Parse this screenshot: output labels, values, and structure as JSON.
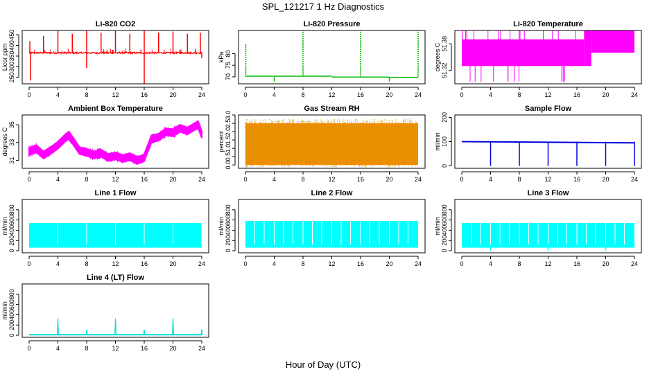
{
  "page": {
    "title": "SPL_121217  1 Hz Diagnostics",
    "xlabel": "Hour of Day (UTC)"
  },
  "chart_data": [
    {
      "type": "line",
      "title": "Li-820 CO2",
      "ylabel": "Licor ppm",
      "color": "#ff0000",
      "xticks": [
        0,
        4,
        8,
        12,
        16,
        20,
        24
      ],
      "yticks": [
        250,
        300,
        350,
        400,
        450
      ],
      "xlim": [
        0,
        24
      ],
      "ylim": [
        220,
        470
      ],
      "baseline": 365,
      "noise": 4,
      "spikes_up": [
        [
          0.1,
          420
        ],
        [
          2.0,
          445
        ],
        [
          4.0,
          470
        ],
        [
          6.0,
          455
        ],
        [
          8.0,
          470
        ],
        [
          10.0,
          460
        ],
        [
          12.0,
          470
        ],
        [
          14.0,
          455
        ],
        [
          16.0,
          470
        ],
        [
          18.0,
          460
        ],
        [
          20.0,
          465
        ],
        [
          22.0,
          455
        ],
        [
          23.8,
          460
        ]
      ],
      "spikes_down": [
        [
          0.2,
          235
        ],
        [
          8.0,
          295
        ],
        [
          16.0,
          220
        ],
        [
          24.0,
          340
        ]
      ]
    },
    {
      "type": "line",
      "title": "Li-820 Pressure",
      "ylabel": "kPa",
      "color": "#00bb00",
      "xticks": [
        0,
        4,
        8,
        12,
        16,
        20,
        24
      ],
      "yticks": [
        70,
        75,
        80
      ],
      "xlim": [
        0,
        24
      ],
      "ylim": [
        67,
        90
      ],
      "segments": [
        [
          0,
          12,
          70.3
        ],
        [
          12,
          20,
          69.9
        ],
        [
          20,
          24,
          69.7
        ]
      ],
      "spikes_up": [
        [
          0.05,
          84
        ],
        [
          8.0,
          90
        ],
        [
          16.0,
          90
        ],
        [
          24.0,
          90
        ]
      ],
      "spikes_down": [
        [
          4.0,
          68
        ],
        [
          20.0,
          68
        ]
      ]
    },
    {
      "type": "area",
      "title": "Li-820 Temperature",
      "ylabel": "degrees C",
      "color": "#ff00ff",
      "xticks": [
        0,
        4,
        8,
        12,
        16,
        20,
        24
      ],
      "yticks": [
        51.32,
        51.38
      ],
      "ytick_labels": [
        "51.32",
        "51.38"
      ],
      "xlim": [
        0,
        24
      ],
      "ylim": [
        51.29,
        51.41
      ],
      "bands": [
        [
          0,
          17,
          51.33,
          51.39
        ],
        [
          17,
          18,
          51.33,
          51.41
        ],
        [
          18,
          24,
          51.36,
          51.41
        ]
      ]
    },
    {
      "type": "line",
      "title": "Ambient Box Temperature",
      "ylabel": "degrees C",
      "color": "#ff00ff",
      "xticks": [
        0,
        4,
        8,
        12,
        16,
        20,
        24
      ],
      "yticks": [
        31,
        33,
        35
      ],
      "xlim": [
        0,
        24
      ],
      "ylim": [
        30.1,
        36.1
      ],
      "x": [
        0,
        1,
        2,
        3,
        4,
        5,
        5.5,
        6,
        7,
        8,
        9,
        10,
        11,
        12,
        13,
        14,
        15,
        15.5,
        16,
        17,
        18,
        19,
        20,
        21,
        22,
        23,
        23.5,
        24
      ],
      "y": [
        32.0,
        32.3,
        31.6,
        32.1,
        32.7,
        33.5,
        33.8,
        33.3,
        32.1,
        31.9,
        31.6,
        31.8,
        31.3,
        31.5,
        31.2,
        31.4,
        31.0,
        31.1,
        31.3,
        33.4,
        33.6,
        34.2,
        34.1,
        34.6,
        34.3,
        34.8,
        35.0,
        33.9
      ],
      "band_half_width": 0.4
    },
    {
      "type": "area",
      "title": "Gas Stream RH",
      "ylabel": "percent",
      "color": "#ff8800",
      "color2": "#cc9900",
      "xticks": [
        0,
        4,
        8,
        12,
        16,
        20,
        24
      ],
      "yticks": [
        0.0,
        0.5,
        1.0,
        1.5,
        2.0,
        2.5,
        3.0
      ],
      "ytick_labels": [
        "0.0",
        "0.5",
        "1.0",
        "1.5",
        "2.0",
        "2.5",
        "3.0"
      ],
      "xlim": [
        0,
        24
      ],
      "ylim": [
        -0.2,
        3.0
      ],
      "low": 0.0,
      "high": 2.5
    },
    {
      "type": "line",
      "title": "Sample Flow",
      "ylabel": "ml/min",
      "color": "#0000dd",
      "xticks": [
        0,
        4,
        8,
        12,
        16,
        20,
        24
      ],
      "yticks": [
        0,
        100,
        200
      ],
      "xlim": [
        0,
        24
      ],
      "ylim": [
        -10,
        210
      ],
      "baseline": 100,
      "end_value": 95,
      "dips": [
        4,
        8,
        12,
        16,
        20,
        24
      ],
      "dip_value": 0
    },
    {
      "type": "area",
      "title": "Line 1 Flow",
      "ylabel": "ml/min",
      "color": "#00ffff",
      "xticks": [
        0,
        4,
        8,
        12,
        16,
        20,
        24
      ],
      "yticks": [
        0,
        200,
        400,
        600,
        800
      ],
      "xlim": [
        0,
        24
      ],
      "ylim": [
        -40,
        1000
      ],
      "low": 60,
      "high": 540,
      "notches": [
        4,
        8,
        12,
        16,
        20,
        24
      ]
    },
    {
      "type": "area",
      "title": "Line 2 Flow",
      "ylabel": "ml/min",
      "color": "#00ffff",
      "xticks": [
        0,
        4,
        8,
        12,
        16,
        20,
        24
      ],
      "yticks": [
        0,
        200,
        400,
        600,
        800
      ],
      "xlim": [
        0,
        24
      ],
      "ylim": [
        -40,
        1000
      ],
      "low": 60,
      "high": 580,
      "notches": [
        1.3,
        2.6,
        4,
        5.3,
        6.6,
        8,
        9.3,
        10.6,
        12,
        13.3,
        14.6,
        16,
        17.3,
        18.6,
        20,
        21.3,
        22.6
      ]
    },
    {
      "type": "area",
      "title": "Line 3 Flow",
      "ylabel": "ml/min",
      "color": "#00ffff",
      "xticks": [
        0,
        4,
        8,
        12,
        16,
        20,
        24
      ],
      "yticks": [
        0,
        200,
        400,
        600,
        800
      ],
      "xlim": [
        0,
        24
      ],
      "ylim": [
        -40,
        1000
      ],
      "low": 60,
      "high": 540,
      "notches": [
        1.3,
        2.6,
        4,
        5.3,
        6.6,
        8,
        9.3,
        10.6,
        12,
        13.3,
        14.6,
        16,
        17.3,
        18.6,
        20,
        21.3,
        22.6
      ],
      "dips": [
        4,
        12,
        20
      ]
    },
    {
      "type": "line",
      "title": "Line 4 (LT) Flow",
      "ylabel": "ml/min",
      "color": "#00dddd",
      "xticks": [
        0,
        4,
        8,
        12,
        16,
        20,
        24
      ],
      "yticks": [
        0,
        200,
        400,
        600,
        800
      ],
      "xlim": [
        0,
        24
      ],
      "ylim": [
        -40,
        1000
      ],
      "baseline": 10,
      "spikes_up": [
        [
          4,
          330
        ],
        [
          8,
          110
        ],
        [
          12,
          330
        ],
        [
          16,
          110
        ],
        [
          20,
          330
        ],
        [
          24,
          120
        ]
      ]
    }
  ]
}
